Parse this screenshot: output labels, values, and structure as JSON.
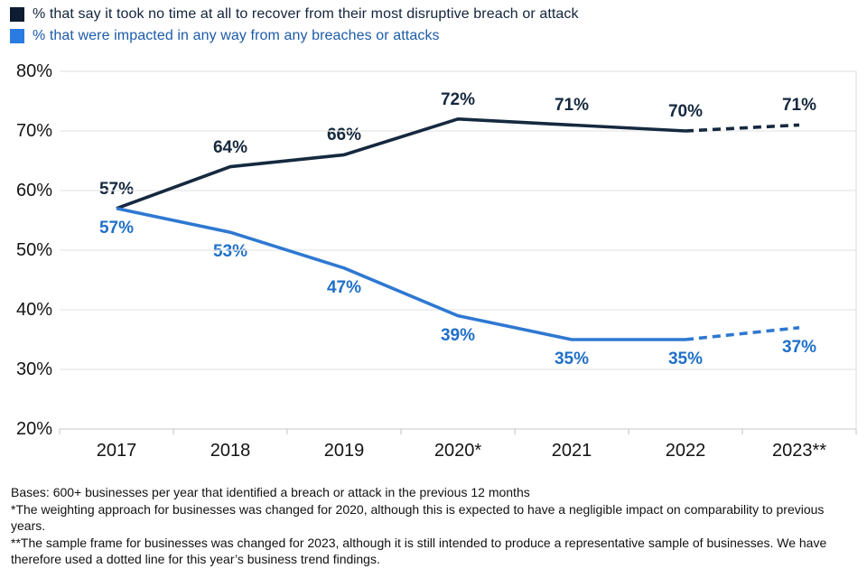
{
  "legend": {
    "items": [
      {
        "label": "% that say it took no time at all to recover from their most disruptive breach or attack",
        "swatch_color": "#0d1c30",
        "text_color": "#13243c"
      },
      {
        "label": "% that were impacted in any way from any breaches or attacks",
        "swatch_color": "#2b7ce0",
        "text_color": "#1c5ba8"
      }
    ]
  },
  "chart_data": {
    "type": "line",
    "categories": [
      "2017",
      "2018",
      "2019",
      "2020*",
      "2021",
      "2022",
      "2023**"
    ],
    "series": [
      {
        "name": "% that say it took no time at all to recover from their most disruptive breach or attack",
        "values": [
          57,
          64,
          66,
          72,
          71,
          70,
          71
        ],
        "color": "#15293f",
        "label_color": "#15293f",
        "label_offset": -31
      },
      {
        "name": "% that were impacted in any way from any breaches or attacks",
        "values": [
          57,
          53,
          47,
          39,
          35,
          35,
          37
        ],
        "color": "#2e78d2",
        "label_color": "#1f70c9",
        "label_offset": 12
      }
    ],
    "ylim": [
      20,
      80
    ],
    "yticks": [
      80,
      70,
      60,
      50,
      40,
      30,
      20
    ],
    "ytick_suffix": "%",
    "grid": true,
    "legend_position": "top-left",
    "dashed_final_segment": true,
    "dashed_note": "Final segment (2022 to 2023) drawn dotted for both series"
  },
  "footnotes": {
    "bases": "Bases: 600+ businesses per year that identified a breach or attack in the previous 12 months",
    "note_2020": "*The weighting approach for businesses was changed for 2020, although this is expected to have a negligible impact on comparability to previous years.",
    "note_2023": "**The sample frame for businesses was changed for 2023, although it is still intended to produce a representative sample of businesses. We have therefore used a dotted line for this year’s business trend findings."
  }
}
